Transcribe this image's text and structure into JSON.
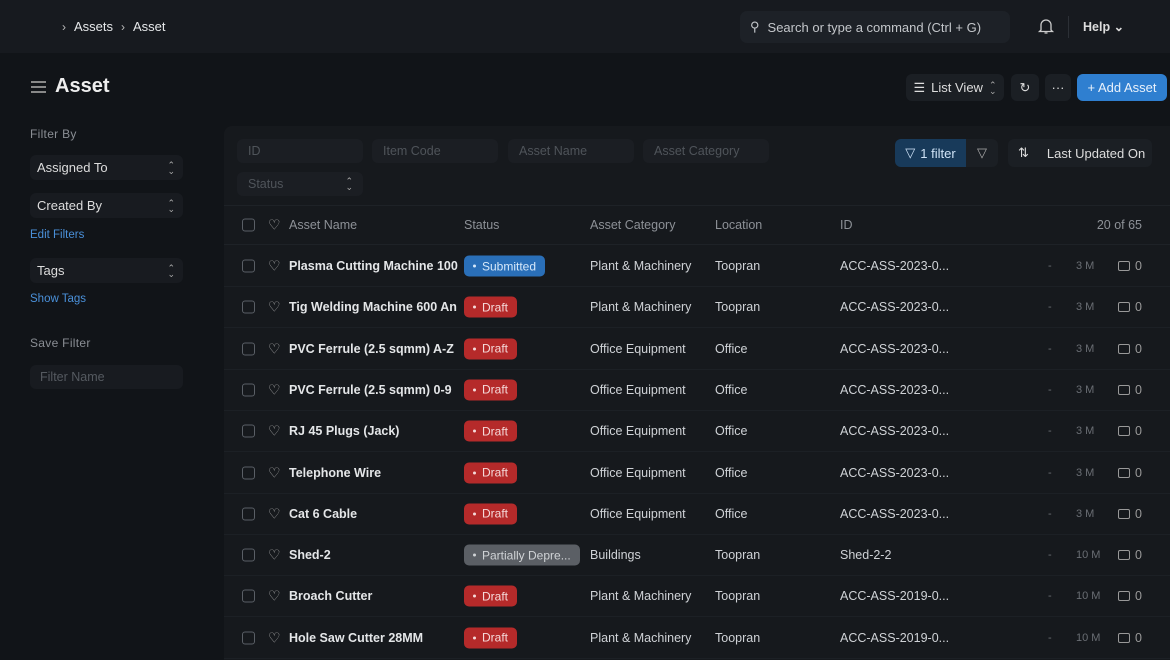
{
  "breadcrumb": [
    "Assets",
    "Asset"
  ],
  "search": {
    "placeholder": "Search or type a command (Ctrl + G)"
  },
  "help_label": "Help",
  "page_title": "Asset",
  "toolbar": {
    "list_view": "List View",
    "add": "+ Add Asset"
  },
  "sidebar": {
    "filter_by": "Filter By",
    "assigned_to": "Assigned To",
    "created_by": "Created By",
    "edit_filters": "Edit Filters",
    "tags": "Tags",
    "show_tags": "Show Tags",
    "save_filter": "Save Filter",
    "filter_name_placeholder": "Filter Name"
  },
  "filters": {
    "id": "ID",
    "item_code": "Item Code",
    "asset_name": "Asset Name",
    "asset_category": "Asset Category",
    "status": "Status",
    "filter_btn": "1 filter",
    "sort": "Last Updated On"
  },
  "table": {
    "headers": {
      "name": "Asset Name",
      "status": "Status",
      "category": "Asset Category",
      "location": "Location",
      "id": "ID",
      "count": "20 of 65"
    },
    "rows": [
      {
        "name": "Plasma Cutting Machine 100",
        "status": "Submitted",
        "category": "Plant & Machinery",
        "location": "Toopran",
        "id": "ACC-ASS-2023-0...",
        "dash": "-",
        "time": "3 M",
        "comments": "0"
      },
      {
        "name": "Tig Welding Machine 600 An",
        "status": "Draft",
        "category": "Plant & Machinery",
        "location": "Toopran",
        "id": "ACC-ASS-2023-0...",
        "dash": "-",
        "time": "3 M",
        "comments": "0"
      },
      {
        "name": "PVC Ferrule (2.5 sqmm) A-Z",
        "status": "Draft",
        "category": "Office Equipment",
        "location": "Office",
        "id": "ACC-ASS-2023-0...",
        "dash": "-",
        "time": "3 M",
        "comments": "0"
      },
      {
        "name": "PVC Ferrule (2.5 sqmm) 0-9",
        "status": "Draft",
        "category": "Office Equipment",
        "location": "Office",
        "id": "ACC-ASS-2023-0...",
        "dash": "-",
        "time": "3 M",
        "comments": "0"
      },
      {
        "name": "RJ 45 Plugs (Jack)",
        "status": "Draft",
        "category": "Office Equipment",
        "location": "Office",
        "id": "ACC-ASS-2023-0...",
        "dash": "-",
        "time": "3 M",
        "comments": "0"
      },
      {
        "name": "Telephone Wire",
        "status": "Draft",
        "category": "Office Equipment",
        "location": "Office",
        "id": "ACC-ASS-2023-0...",
        "dash": "-",
        "time": "3 M",
        "comments": "0"
      },
      {
        "name": "Cat 6 Cable",
        "status": "Draft",
        "category": "Office Equipment",
        "location": "Office",
        "id": "ACC-ASS-2023-0...",
        "dash": "-",
        "time": "3 M",
        "comments": "0"
      },
      {
        "name": "Shed-2",
        "status": "Partially Depre...",
        "category": "Buildings",
        "location": "Toopran",
        "id": "Shed-2-2",
        "dash": "-",
        "time": "10 M",
        "comments": "0"
      },
      {
        "name": "Broach Cutter",
        "status": "Draft",
        "category": "Plant & Machinery",
        "location": "Toopran",
        "id": "ACC-ASS-2019-0...",
        "dash": "-",
        "time": "10 M",
        "comments": "0"
      },
      {
        "name": "Hole Saw Cutter 28MM",
        "status": "Draft",
        "category": "Plant & Machinery",
        "location": "Toopran",
        "id": "ACC-ASS-2019-0...",
        "dash": "-",
        "time": "10 M",
        "comments": "0"
      }
    ]
  },
  "status_colors": {
    "Submitted": "#2a6fb8",
    "Draft": "#b52a2a",
    "Partially Depre...": "#5b5f65"
  }
}
